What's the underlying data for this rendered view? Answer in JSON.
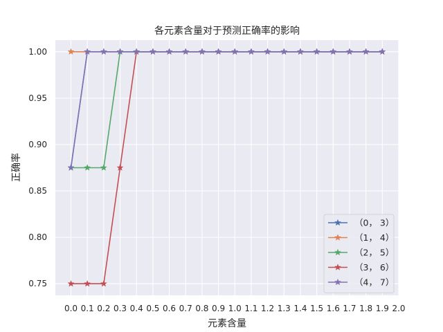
{
  "chart_data": {
    "type": "line",
    "title": "各元素含量对于预测正确率的影响",
    "xlabel": "元素含量",
    "ylabel": "正确率",
    "x": [
      0.0,
      0.1,
      0.2,
      0.3,
      0.4,
      0.5,
      0.6,
      0.7,
      0.8,
      0.9,
      1.0,
      1.1,
      1.2,
      1.3,
      1.4,
      1.5,
      1.6,
      1.7,
      1.8,
      1.9
    ],
    "xticks": [
      "0.0",
      "0.1",
      "0.2",
      "0.3",
      "0.4",
      "0.5",
      "0.6",
      "0.7",
      "0.8",
      "0.9",
      "1.0",
      "1.1",
      "1.2",
      "1.3",
      "1.4",
      "1.5",
      "1.6",
      "1.7",
      "1.8",
      "1.9",
      "2.0"
    ],
    "xlim": [
      -0.095,
      2.0
    ],
    "yticks": [
      "0.75",
      "0.80",
      "0.85",
      "0.90",
      "0.95",
      "1.00"
    ],
    "ylim": [
      0.7375,
      1.0125
    ],
    "grid": true,
    "legend_position": "bottom-right",
    "series": [
      {
        "name": "（0， 3）",
        "color": "#4c72b0",
        "values": [
          0.875,
          1,
          1,
          1,
          1,
          1,
          1,
          1,
          1,
          1,
          1,
          1,
          1,
          1,
          1,
          1,
          1,
          1,
          1,
          1
        ]
      },
      {
        "name": "（1， 4）",
        "color": "#dd8452",
        "values": [
          1,
          1,
          1,
          1,
          1,
          1,
          1,
          1,
          1,
          1,
          1,
          1,
          1,
          1,
          1,
          1,
          1,
          1,
          1,
          1
        ]
      },
      {
        "name": "（2， 5）",
        "color": "#55a868",
        "values": [
          0.875,
          0.875,
          0.875,
          1,
          1,
          1,
          1,
          1,
          1,
          1,
          1,
          1,
          1,
          1,
          1,
          1,
          1,
          1,
          1,
          1
        ]
      },
      {
        "name": "（3， 6）",
        "color": "#c44e52",
        "values": [
          0.75,
          0.75,
          0.75,
          0.875,
          1,
          1,
          1,
          1,
          1,
          1,
          1,
          1,
          1,
          1,
          1,
          1,
          1,
          1,
          1,
          1
        ]
      },
      {
        "name": "（4， 7）",
        "color": "#8172b3",
        "values": [
          0.875,
          1,
          1,
          1,
          1,
          1,
          1,
          1,
          1,
          1,
          1,
          1,
          1,
          1,
          1,
          1,
          1,
          1,
          1,
          1
        ]
      }
    ]
  }
}
